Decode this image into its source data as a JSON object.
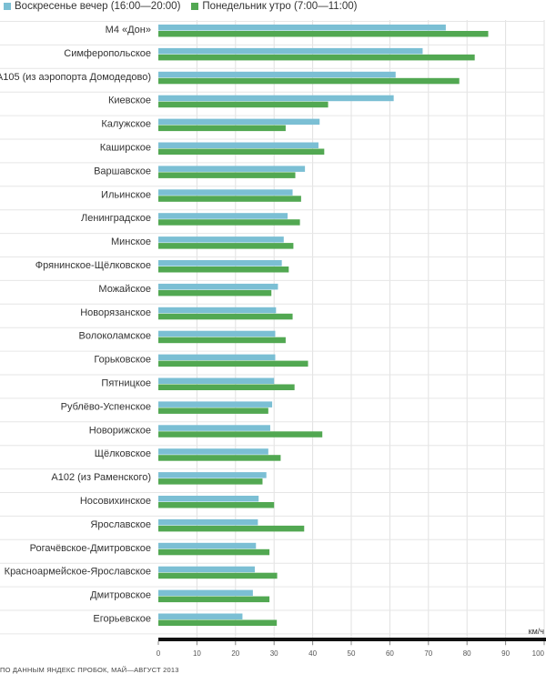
{
  "legend": {
    "items": [
      {
        "label": "Воскресенье вечер (16:00—20:00)",
        "color": "#7bbfd4"
      },
      {
        "label": "Понедельник утро (7:00—11:00)",
        "color": "#52a852"
      }
    ]
  },
  "footer": {
    "unit": "км/ч",
    "source": "ПО ДАННЫМ ЯНДЕКС ПРОБОК, МАЙ—АВГУСТ 2013"
  },
  "chart_data": {
    "type": "bar",
    "orientation": "horizontal",
    "xlabel": "км/ч",
    "xlim": [
      0,
      100
    ],
    "xticks": [
      0,
      10,
      20,
      30,
      40,
      50,
      60,
      70,
      80,
      90,
      100
    ],
    "grid": true,
    "categories": [
      "М4 «Дон»",
      "Симферопольское",
      "А105 (из аэропорта Домодедово)",
      "Киевское",
      "Калужское",
      "Каширское",
      "Варшавское",
      "Ильинское",
      "Ленинградское",
      "Минское",
      "Фрянинское-Щёлковское",
      "Можайское",
      "Новорязанское",
      "Волоколамское",
      "Горьковское",
      "Пятницкое",
      "Рублёво-Успенское",
      "Новорижское",
      "Щёлковское",
      "А102 (из Раменского)",
      "Носовихинское",
      "Ярославское",
      "Рогачёвское-Дмитровское",
      "Красноармейское-Ярославское",
      "Дмитровское",
      "Егорьевское"
    ],
    "series": [
      {
        "name": "Воскресенье вечер (16:00—20:00)",
        "color": "#7bbfd4",
        "values": [
          74.5,
          68.5,
          61.5,
          61,
          41.8,
          41.5,
          38,
          34.8,
          33.5,
          32.5,
          32,
          31,
          30.5,
          30.3,
          30.3,
          30,
          29.5,
          29,
          28.5,
          28,
          26,
          25.8,
          25.3,
          25,
          24.5,
          21.8
        ]
      },
      {
        "name": "Понедельник утро (7:00—11:00)",
        "color": "#52a852",
        "values": [
          85.5,
          82,
          78,
          44,
          33,
          43,
          35.5,
          37,
          36.7,
          35,
          33.8,
          29.3,
          34.8,
          33,
          38.8,
          35.3,
          28.5,
          42.5,
          31.7,
          27,
          30,
          37.8,
          28.8,
          30.8,
          28.8,
          30.7
        ]
      }
    ]
  }
}
